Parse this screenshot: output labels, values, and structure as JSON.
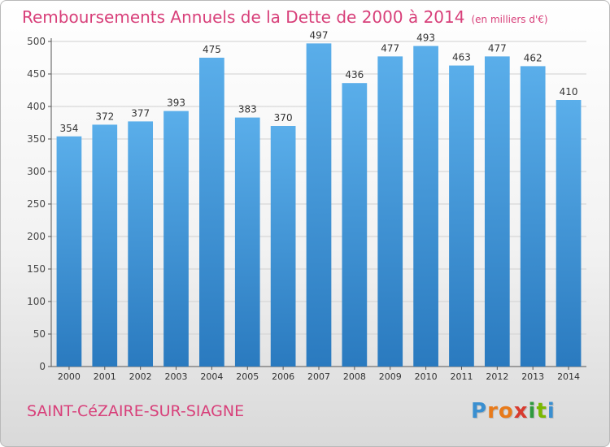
{
  "title": "Remboursements Annuels de la Dette de 2000 à 2014",
  "subtitle": "(en milliers d'€)",
  "town": "SAINT-CéZAIRE-SUR-SIAGNE",
  "logo": {
    "letters": [
      "P",
      "r",
      "o",
      "x",
      "i",
      "t",
      "i"
    ],
    "colors": [
      "#3a8fd0",
      "#e87a1a",
      "#e87a1a",
      "#d83b2f",
      "#2f9a3e",
      "#7ab800",
      "#3a8fd0"
    ]
  },
  "colors": {
    "bar_top": "#5aaeea",
    "bar_bottom": "#2a7abf",
    "grid": "#d0d0d0",
    "accent": "#d8407a"
  },
  "chart_data": {
    "type": "bar",
    "title": "Remboursements Annuels de la Dette de 2000 à 2014",
    "subtitle": "(en milliers d'€)",
    "categories": [
      "2000",
      "2001",
      "2002",
      "2003",
      "2004",
      "2005",
      "2006",
      "2007",
      "2008",
      "2009",
      "2010",
      "2011",
      "2012",
      "2013",
      "2014"
    ],
    "values": [
      354,
      372,
      377,
      393,
      475,
      383,
      370,
      497,
      436,
      477,
      493,
      463,
      477,
      462,
      410
    ],
    "ylim": [
      0,
      500
    ],
    "yticks": [
      0,
      50,
      100,
      150,
      200,
      250,
      300,
      350,
      400,
      450,
      500
    ],
    "grid": true,
    "data_labels": true
  }
}
